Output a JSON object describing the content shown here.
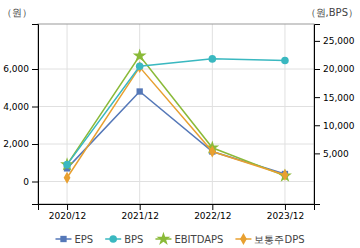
{
  "chart_data": {
    "type": "line",
    "categories": [
      "2020/12",
      "2021/12",
      "2022/12",
      "2023/12"
    ],
    "y_label": "（원）",
    "y2_label": "（원,BPS）",
    "ylim": [
      -1200,
      8400
    ],
    "yticks": [
      0,
      {
        "value": 2000,
        "label": "2,000"
      },
      {
        "value": 4000,
        "label": "4,000"
      },
      {
        "value": 6000,
        "label": "6,000"
      }
    ],
    "y2lim": [
      -4000,
      28000
    ],
    "y2ticks": [
      {
        "value": 5000,
        "label": "5,000"
      },
      {
        "value": 10000,
        "label": "10,000"
      },
      {
        "value": 15000,
        "label": "15,000"
      },
      {
        "value": 20000,
        "label": "20,000"
      },
      {
        "value": 25000,
        "label": "25,000"
      }
    ],
    "grid": true,
    "legend": "bottom",
    "series": [
      {
        "name": "EPS",
        "color": "#5578b8",
        "marker": "square",
        "values": [
          700,
          4800,
          1600,
          400
        ]
      },
      {
        "name": "BPS",
        "color": "#3ab8c0",
        "marker": "circle",
        "axis": "y2",
        "values": [
          3000,
          20500,
          21800,
          21500
        ]
      },
      {
        "name": "EBITDAPS",
        "color": "#8aba38",
        "marker": "star",
        "values": [
          900,
          6700,
          1800,
          300
        ]
      },
      {
        "name": "보통주DPS",
        "color": "#e8a030",
        "marker": "diamond",
        "values": [
          200,
          6100,
          1600,
          350
        ]
      }
    ]
  }
}
